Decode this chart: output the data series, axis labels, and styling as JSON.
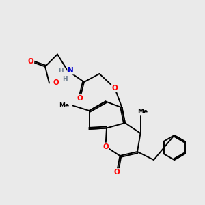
{
  "bg_color": "#eaeaea",
  "atom_colors": {
    "C": "#000000",
    "O": "#ff0000",
    "N": "#0000cc",
    "H": "#708090"
  },
  "bond_color": "#000000",
  "bond_width": 1.4,
  "figsize": [
    3.0,
    3.0
  ],
  "dpi": 100,
  "xlim": [
    0,
    10
  ],
  "ylim": [
    0,
    10
  ]
}
